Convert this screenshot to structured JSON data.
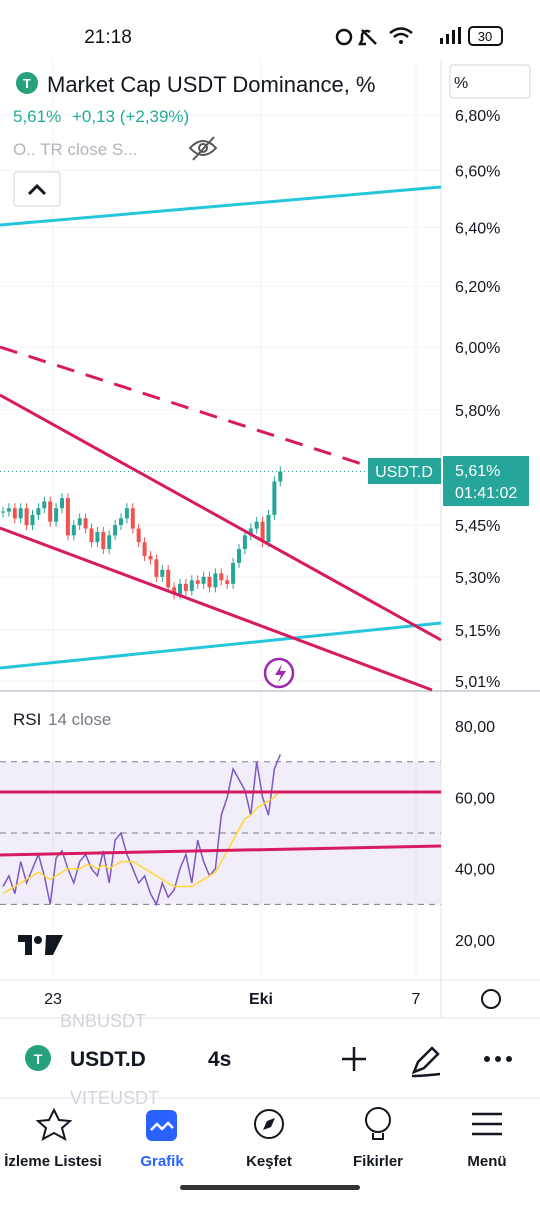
{
  "status_bar": {
    "time": "21:18",
    "battery": "30"
  },
  "header": {
    "title": "Market Cap USDT Dominance, %",
    "last": "5,61%",
    "change": "+0,13 (+2,39%)",
    "indicator": "O.. TR close S...",
    "unit": "%"
  },
  "chart_data": {
    "type": "candlestick",
    "log_scale": true,
    "grid": true,
    "ylim": [
      4.986,
      7.005
    ],
    "yticks": [
      {
        "value": 6.8,
        "label": "6,80%"
      },
      {
        "value": 6.6,
        "label": "6,60%"
      },
      {
        "value": 6.4,
        "label": "6,40%"
      },
      {
        "value": 6.2,
        "label": "6,20%"
      },
      {
        "value": 6.0,
        "label": "6,00%"
      },
      {
        "value": 5.8,
        "label": "5,80%"
      },
      {
        "value": 5.45,
        "label": "5,45%"
      },
      {
        "value": 5.3,
        "label": "5,30%"
      },
      {
        "value": 5.15,
        "label": "5,15%"
      },
      {
        "value": 5.01,
        "label": "5,01%"
      }
    ],
    "x_labels": [
      "23",
      "Eki",
      "7"
    ],
    "closes": [
      5.49,
      5.5,
      5.47,
      5.5,
      5.45,
      5.48,
      5.5,
      5.52,
      5.46,
      5.5,
      5.53,
      5.42,
      5.45,
      5.47,
      5.44,
      5.4,
      5.43,
      5.38,
      5.42,
      5.45,
      5.47,
      5.5,
      5.44,
      5.4,
      5.36,
      5.35,
      5.3,
      5.32,
      5.27,
      5.25,
      5.28,
      5.26,
      5.29,
      5.28,
      5.3,
      5.27,
      5.31,
      5.29,
      5.28,
      5.34,
      5.38,
      5.42,
      5.44,
      5.46,
      5.4,
      5.48,
      5.58,
      5.61
    ],
    "up_color": "#26a69a",
    "down_color": "#ef5350",
    "price_tag": {
      "symbol": "USDT.D",
      "price": "5,61%",
      "countdown": "01:41:02"
    }
  },
  "rsi_data": {
    "type": "line",
    "label": "RSI",
    "params": "14 close",
    "ylim": [
      10.2,
      87.3
    ],
    "yticks": [
      {
        "value": 80,
        "label": "80,00"
      },
      {
        "value": 60,
        "label": "60,00"
      },
      {
        "value": 40,
        "label": "40,00"
      },
      {
        "value": 20,
        "label": "20,00"
      }
    ],
    "bands": [
      70,
      50,
      30
    ],
    "series": [
      {
        "name": "RSI",
        "color": "#7e57c2",
        "values": [
          35,
          38,
          33,
          42,
          36,
          40,
          44,
          38,
          30,
          43,
          45,
          40,
          36,
          42,
          44,
          40,
          38,
          45,
          36,
          48,
          50,
          44,
          40,
          36,
          38,
          33,
          30,
          36,
          32,
          34,
          40,
          44,
          36,
          48,
          42,
          38,
          40,
          55,
          60,
          68,
          65,
          62,
          55,
          70,
          60,
          55,
          68,
          72
        ]
      },
      {
        "name": "MA",
        "color": "#fdd835",
        "values": [
          33,
          34,
          35,
          36,
          37,
          38,
          39,
          38,
          37,
          38,
          39,
          40,
          40,
          40,
          41,
          41,
          40,
          41,
          40,
          41,
          42,
          42,
          42,
          41,
          40,
          39,
          38,
          37,
          36,
          35,
          35,
          35,
          35,
          36,
          37,
          38,
          39,
          42,
          45,
          48,
          51,
          54,
          55,
          57,
          58,
          59,
          60,
          62
        ]
      }
    ]
  },
  "toolbar": {
    "symbol": "USDT.D",
    "interval": "4s",
    "ghost_above": "BNBUSDT",
    "ghost_below": "VITEUSDT"
  },
  "nav": [
    "İzleme Listesi",
    "Grafik",
    "Keşfet",
    "Fikirler",
    "Menü"
  ]
}
